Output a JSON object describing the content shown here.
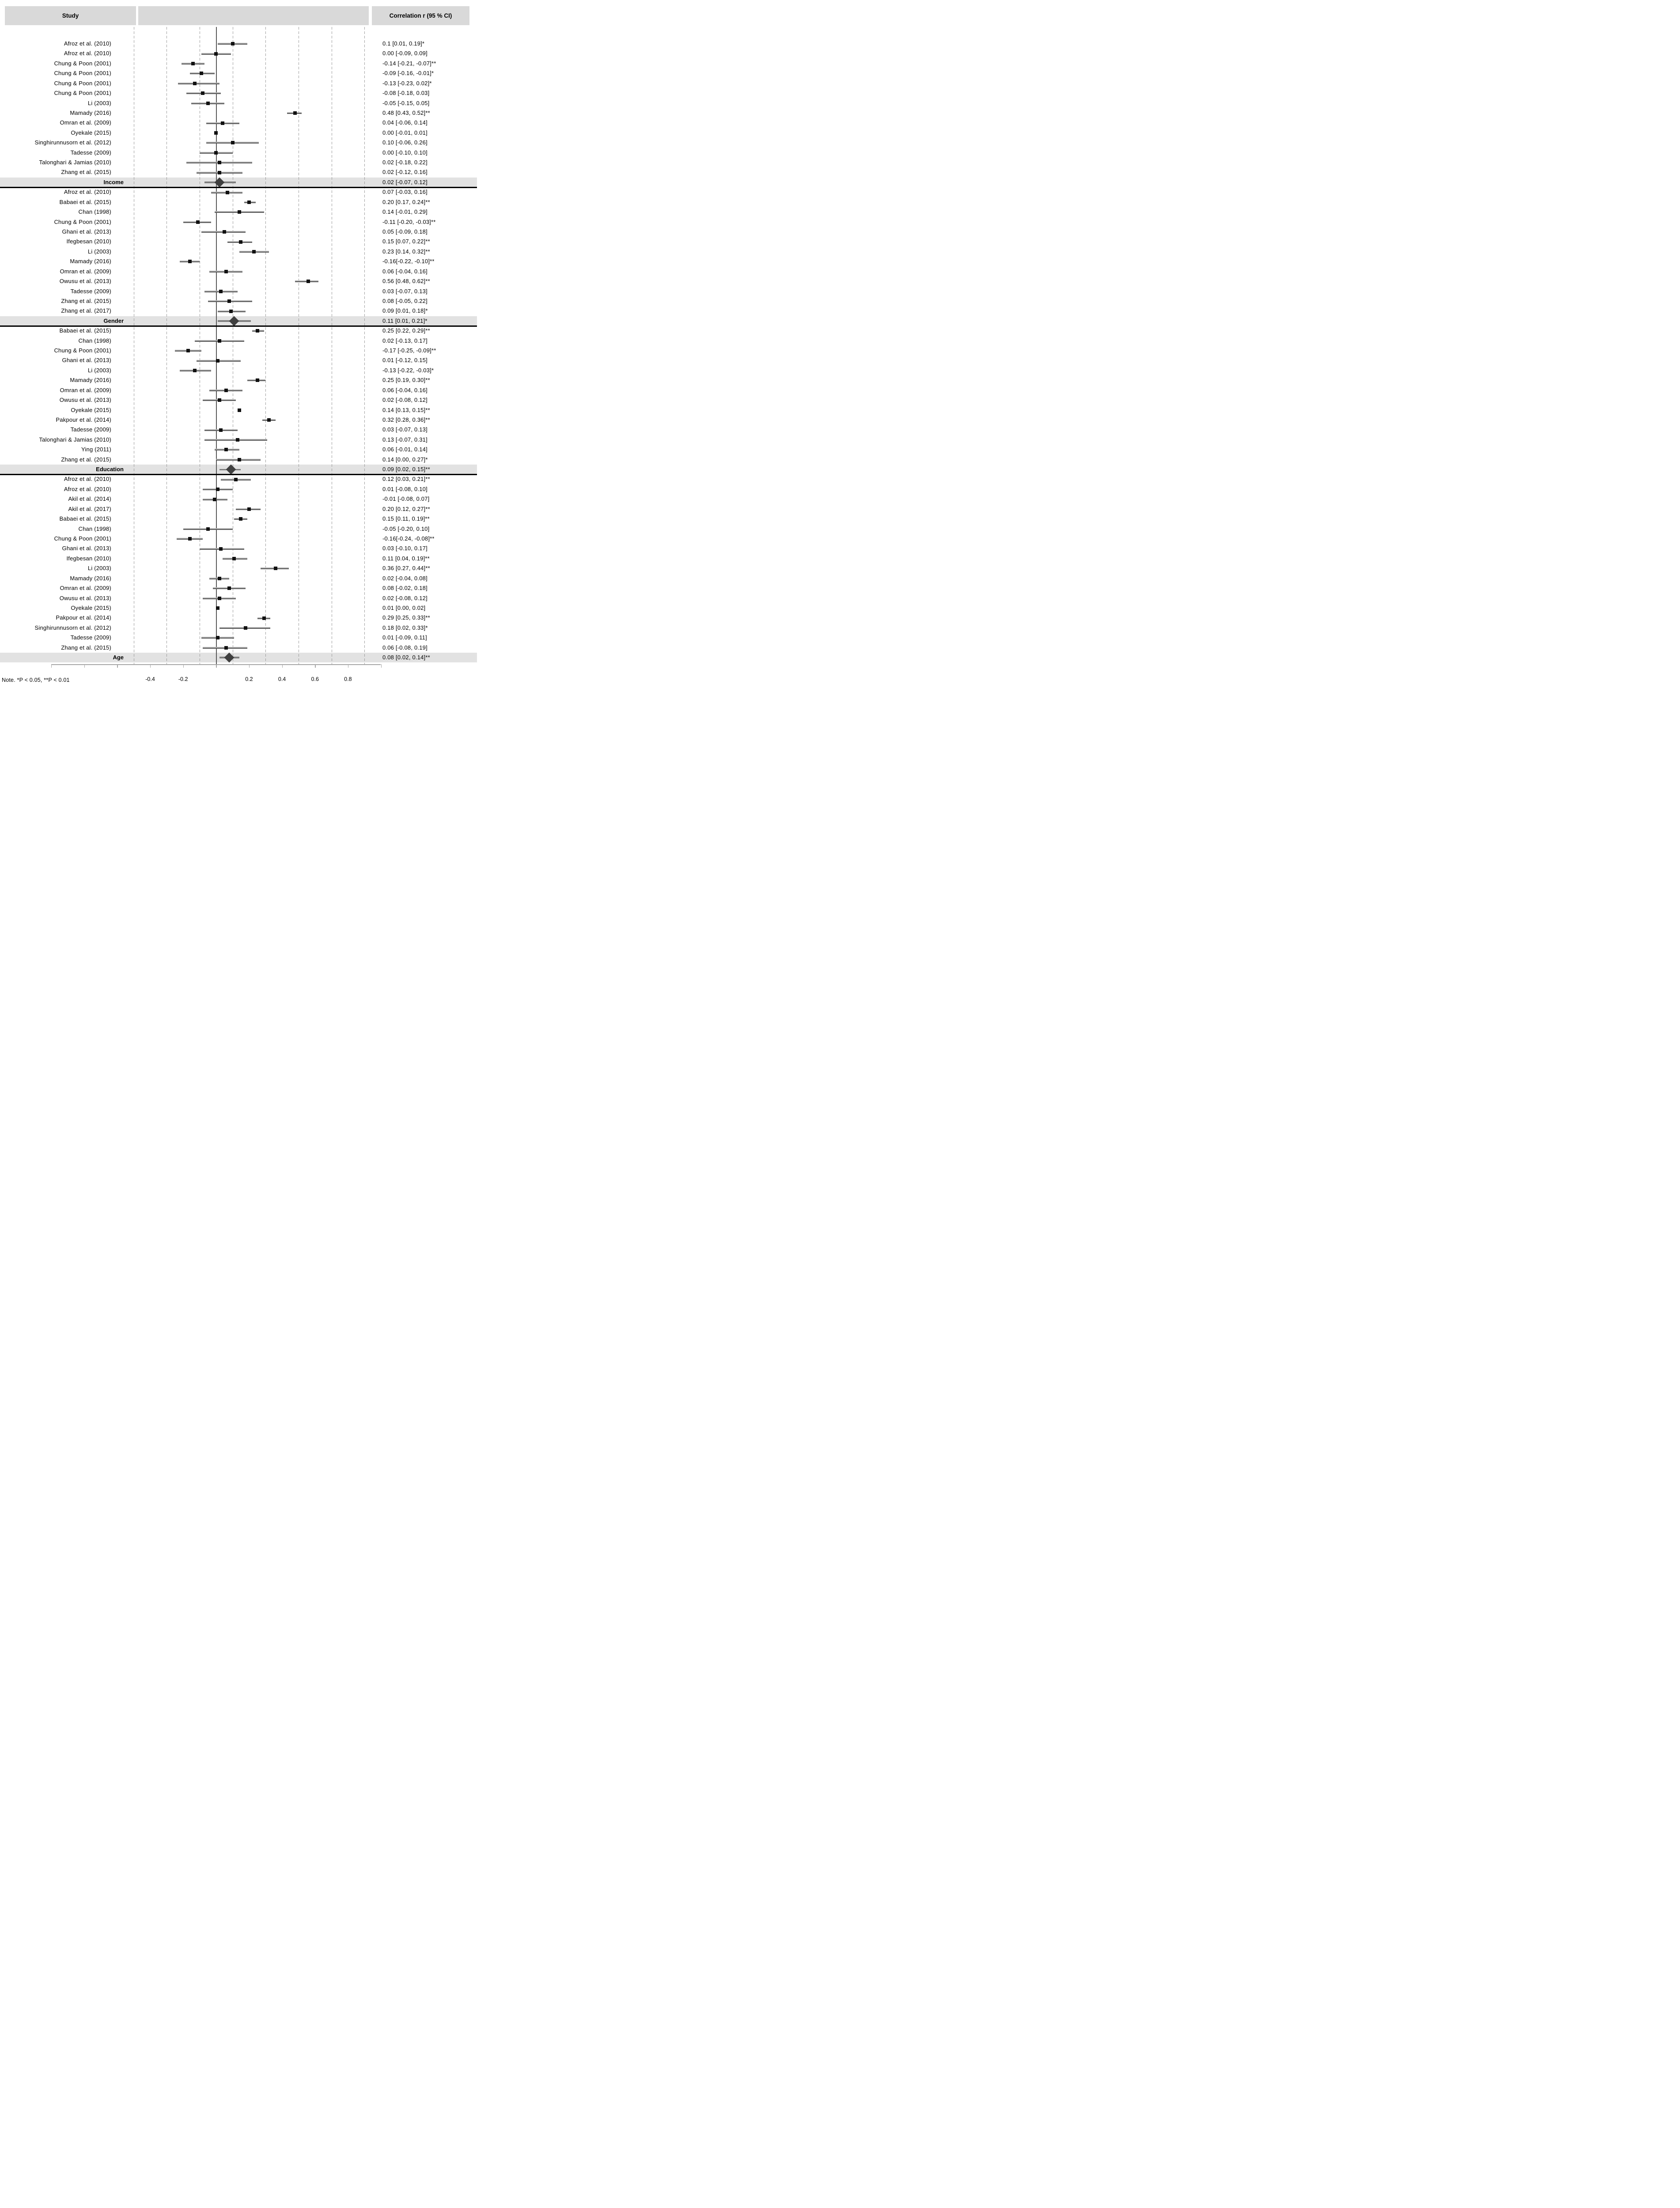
{
  "header": {
    "study_label": "Study",
    "correlation_label": "Correlation r (95 % CI)"
  },
  "note": "Note. *P < 0.05, **P < 0.01",
  "colors": {
    "header_bg": "#D9D9D9",
    "summary_band_bg": "#E2E2E2",
    "gridline": "#9B9B9B",
    "zero_line": "#595959",
    "axis": "#A6A6A6",
    "ci_line": "#7F7F7F",
    "marker": "#111111",
    "diamond": "#3F3F3F",
    "separator": "#000000",
    "text": "#000000"
  },
  "chart_data": {
    "type": "forest",
    "title": "",
    "xlabel": "",
    "xlim": [
      -1.0,
      1.0
    ],
    "grid": "dashed-vertical",
    "axis": {
      "tick_values": [
        -1.0,
        -0.8,
        -0.6,
        -0.4,
        -0.2,
        0,
        0.2,
        0.4,
        0.6,
        0.8,
        1.0
      ],
      "tick_labels": [
        {
          "value": -0.4,
          "label": "-0.4"
        },
        {
          "value": -0.2,
          "label": "-0.2"
        },
        {
          "value": 0.2,
          "label": "0.2"
        },
        {
          "value": 0.4,
          "label": "0.4"
        },
        {
          "value": 0.6,
          "label": "0.6"
        },
        {
          "value": 0.8,
          "label": "0.8"
        }
      ],
      "gridline_values": [
        -0.5,
        -0.3,
        -0.1,
        0.1,
        0.3,
        0.5,
        0.7,
        0.9
      ],
      "zero_value": 0
    },
    "sections": [
      {
        "name": "Income",
        "separator_below": true,
        "summary": {
          "r": 0.02,
          "lo": -0.07,
          "hi": 0.12,
          "label": "0.02 [-0.07, 0.12]"
        },
        "studies": [
          {
            "study": "Afroz et al. (2010)",
            "r": 0.1,
            "lo": 0.01,
            "hi": 0.19,
            "label": "0.1 [0.01, 0.19]*"
          },
          {
            "study": "Afroz et al. (2010)",
            "r": 0.0,
            "lo": -0.09,
            "hi": 0.09,
            "label": "0.00 [-0.09, 0.09]"
          },
          {
            "study": "Chung & Poon (2001)",
            "r": -0.14,
            "lo": -0.21,
            "hi": -0.07,
            "label": "-0.14 [-0.21, -0.07]**"
          },
          {
            "study": "Chung & Poon (2001)",
            "r": -0.09,
            "lo": -0.16,
            "hi": -0.01,
            "label": "-0.09 [-0.16, -0.01]*"
          },
          {
            "study": "Chung & Poon (2001)",
            "r": -0.13,
            "lo": -0.23,
            "hi": 0.02,
            "label": "-0.13 [-0.23, 0.02]*"
          },
          {
            "study": "Chung & Poon (2001)",
            "r": -0.08,
            "lo": -0.18,
            "hi": 0.03,
            "label": "-0.08 [-0.18, 0.03]"
          },
          {
            "study": "Li (2003)",
            "r": -0.05,
            "lo": -0.15,
            "hi": 0.05,
            "label": "-0.05 [-0.15, 0.05]"
          },
          {
            "study": "Mamady (2016)",
            "r": 0.48,
            "lo": 0.43,
            "hi": 0.52,
            "label": "0.48 [0.43, 0.52]**"
          },
          {
            "study": "Omran et al. (2009)",
            "r": 0.04,
            "lo": -0.06,
            "hi": 0.14,
            "label": "0.04 [-0.06, 0.14]"
          },
          {
            "study": "Oyekale (2015)",
            "r": 0.0,
            "lo": -0.01,
            "hi": 0.01,
            "label": "0.00 [-0.01, 0.01]"
          },
          {
            "study": "Singhirunnusorn et al. (2012)",
            "r": 0.1,
            "lo": -0.06,
            "hi": 0.26,
            "label": "0.10 [-0.06, 0.26]"
          },
          {
            "study": "Tadesse (2009)",
            "r": 0.0,
            "lo": -0.1,
            "hi": 0.1,
            "label": "0.00 [-0.10, 0.10]"
          },
          {
            "study": "Talonghari & Jamias (2010)",
            "r": 0.02,
            "lo": -0.18,
            "hi": 0.22,
            "label": "0.02 [-0.18, 0.22]"
          },
          {
            "study": "Zhang et al. (2015)",
            "r": 0.02,
            "lo": -0.12,
            "hi": 0.16,
            "label": "0.02 [-0.12, 0.16]"
          }
        ]
      },
      {
        "name": "Gender",
        "separator_below": true,
        "summary": {
          "r": 0.11,
          "lo": 0.01,
          "hi": 0.21,
          "label": "0.11 [0.01, 0.21]*"
        },
        "studies": [
          {
            "study": "Afroz et al. (2010)",
            "r": 0.07,
            "lo": -0.03,
            "hi": 0.16,
            "label": "0.07 [-0.03, 0.16]"
          },
          {
            "study": "Babaei et al. (2015)",
            "r": 0.2,
            "lo": 0.17,
            "hi": 0.24,
            "label": "0.20 [0.17, 0.24]**"
          },
          {
            "study": "Chan (1998)",
            "r": 0.14,
            "lo": -0.01,
            "hi": 0.29,
            "label": "0.14 [-0.01, 0.29]"
          },
          {
            "study": "Chung & Poon (2001)",
            "r": -0.11,
            "lo": -0.2,
            "hi": -0.03,
            "label": "-0.11 [-0.20, -0.03]**"
          },
          {
            "study": "Ghani et al. (2013)",
            "r": 0.05,
            "lo": -0.09,
            "hi": 0.18,
            "label": "0.05 [-0.09, 0.18]"
          },
          {
            "study": "Ifegbesan (2010)",
            "r": 0.15,
            "lo": 0.07,
            "hi": 0.22,
            "label": "0.15 [0.07, 0.22]**"
          },
          {
            "study": "Li (2003)",
            "r": 0.23,
            "lo": 0.14,
            "hi": 0.32,
            "label": "0.23 [0.14, 0.32]**"
          },
          {
            "study": "Mamady (2016)",
            "r": -0.16,
            "lo": -0.22,
            "hi": -0.1,
            "label": "-0.16[-0.22, -0.10]**"
          },
          {
            "study": "Omran et al. (2009)",
            "r": 0.06,
            "lo": -0.04,
            "hi": 0.16,
            "label": "0.06 [-0.04, 0.16]"
          },
          {
            "study": "Owusu et al. (2013)",
            "r": 0.56,
            "lo": 0.48,
            "hi": 0.62,
            "label": "0.56 [0.48, 0.62]**"
          },
          {
            "study": "Tadesse (2009)",
            "r": 0.03,
            "lo": -0.07,
            "hi": 0.13,
            "label": "0.03 [-0.07, 0.13]"
          },
          {
            "study": "Zhang et al. (2015)",
            "r": 0.08,
            "lo": -0.05,
            "hi": 0.22,
            "label": "0.08 [-0.05, 0.22]"
          },
          {
            "study": "Zhang et al. (2017)",
            "r": 0.09,
            "lo": 0.01,
            "hi": 0.18,
            "label": "0.09 [0.01, 0.18]*"
          }
        ]
      },
      {
        "name": "Education",
        "separator_below": true,
        "summary": {
          "r": 0.09,
          "lo": 0.02,
          "hi": 0.15,
          "label": "0.09 [0.02, 0.15]**"
        },
        "studies": [
          {
            "study": "Babaei et al. (2015)",
            "r": 0.25,
            "lo": 0.22,
            "hi": 0.29,
            "label": "0.25 [0.22, 0.29]**"
          },
          {
            "study": "Chan (1998)",
            "r": 0.02,
            "lo": -0.13,
            "hi": 0.17,
            "label": "0.02 [-0.13, 0.17]"
          },
          {
            "study": "Chung & Poon (2001)",
            "r": -0.17,
            "lo": -0.25,
            "hi": -0.09,
            "label": "-0.17 [-0.25, -0.09]**"
          },
          {
            "study": "Ghani et al. (2013)",
            "r": 0.01,
            "lo": -0.12,
            "hi": 0.15,
            "label": "0.01 [-0.12, 0.15]"
          },
          {
            "study": "Li (2003)",
            "r": -0.13,
            "lo": -0.22,
            "hi": -0.03,
            "label": "-0.13 [-0.22, -0.03]*"
          },
          {
            "study": "Mamady (2016)",
            "r": 0.25,
            "lo": 0.19,
            "hi": 0.3,
            "label": "0.25 [0.19, 0.30]**"
          },
          {
            "study": "Omran et al. (2009)",
            "r": 0.06,
            "lo": -0.04,
            "hi": 0.16,
            "label": "0.06 [-0.04, 0.16]"
          },
          {
            "study": "Owusu et al. (2013)",
            "r": 0.02,
            "lo": -0.08,
            "hi": 0.12,
            "label": "0.02 [-0.08, 0.12]"
          },
          {
            "study": "Oyekale (2015)",
            "r": 0.14,
            "lo": 0.13,
            "hi": 0.15,
            "label": "0.14 [0.13, 0.15]**"
          },
          {
            "study": "Pakpour et al. (2014)",
            "r": 0.32,
            "lo": 0.28,
            "hi": 0.36,
            "label": "0.32 [0.28, 0.36]**"
          },
          {
            "study": "Tadesse (2009)",
            "r": 0.03,
            "lo": -0.07,
            "hi": 0.13,
            "label": "0.03 [-0.07, 0.13]"
          },
          {
            "study": "Talonghari & Jamias (2010)",
            "r": 0.13,
            "lo": -0.07,
            "hi": 0.31,
            "label": "0.13 [-0.07, 0.31]"
          },
          {
            "study": "Ying (2011)",
            "r": 0.06,
            "lo": -0.01,
            "hi": 0.14,
            "label": "0.06 [-0.01, 0.14]"
          },
          {
            "study": "Zhang et al. (2015)",
            "r": 0.14,
            "lo": 0.0,
            "hi": 0.27,
            "label": "0.14 [0.00, 0.27]*"
          }
        ]
      },
      {
        "name": "Age",
        "separator_below": false,
        "summary": {
          "r": 0.08,
          "lo": 0.02,
          "hi": 0.14,
          "label": "0.08 [0.02, 0.14]**"
        },
        "studies": [
          {
            "study": "Afroz et al. (2010)",
            "r": 0.12,
            "lo": 0.03,
            "hi": 0.21,
            "label": "0.12 [0.03, 0.21]**"
          },
          {
            "study": "Afroz et al. (2010)",
            "r": 0.01,
            "lo": -0.08,
            "hi": 0.1,
            "label": "0.01 [-0.08, 0.10]"
          },
          {
            "study": "Akil et al. (2014)",
            "r": -0.01,
            "lo": -0.08,
            "hi": 0.07,
            "label": "-0.01 [-0.08, 0.07]"
          },
          {
            "study": "Akil et al. (2017)",
            "r": 0.2,
            "lo": 0.12,
            "hi": 0.27,
            "label": "0.20 [0.12, 0.27]**"
          },
          {
            "study": "Babaei et al. (2015)",
            "r": 0.15,
            "lo": 0.11,
            "hi": 0.19,
            "label": "0.15 [0.11, 0.19]**"
          },
          {
            "study": "Chan (1998)",
            "r": -0.05,
            "lo": -0.2,
            "hi": 0.1,
            "label": "-0.05 [-0.20, 0.10]"
          },
          {
            "study": "Chung & Poon (2001)",
            "r": -0.16,
            "lo": -0.24,
            "hi": -0.08,
            "label": "-0.16[-0.24, -0.08]**"
          },
          {
            "study": "Ghani et al. (2013)",
            "r": 0.03,
            "lo": -0.1,
            "hi": 0.17,
            "label": "0.03 [-0.10, 0.17]"
          },
          {
            "study": "Ifegbesan (2010)",
            "r": 0.11,
            "lo": 0.04,
            "hi": 0.19,
            "label": "0.11 [0.04, 0.19]**"
          },
          {
            "study": "Li (2003)",
            "r": 0.36,
            "lo": 0.27,
            "hi": 0.44,
            "label": "0.36 [0.27, 0.44]**"
          },
          {
            "study": "Mamady (2016)",
            "r": 0.02,
            "lo": -0.04,
            "hi": 0.08,
            "label": "0.02 [-0.04, 0.08]"
          },
          {
            "study": "Omran et al. (2009)",
            "r": 0.08,
            "lo": -0.02,
            "hi": 0.18,
            "label": "0.08 [-0.02, 0.18]"
          },
          {
            "study": "Owusu et al. (2013)",
            "r": 0.02,
            "lo": -0.08,
            "hi": 0.12,
            "label": "0.02 [-0.08, 0.12]"
          },
          {
            "study": "Oyekale (2015)",
            "r": 0.01,
            "lo": 0.0,
            "hi": 0.02,
            "label": "0.01 [0.00, 0.02]"
          },
          {
            "study": "Pakpour et al. (2014)",
            "r": 0.29,
            "lo": 0.25,
            "hi": 0.33,
            "label": "0.29 [0.25, 0.33]**"
          },
          {
            "study": "Singhirunnusorn et al. (2012)",
            "r": 0.18,
            "lo": 0.02,
            "hi": 0.33,
            "label": "0.18 [0.02, 0.33]*"
          },
          {
            "study": "Tadesse (2009)",
            "r": 0.01,
            "lo": -0.09,
            "hi": 0.11,
            "label": "0.01 [-0.09, 0.11]"
          },
          {
            "study": "Zhang et al. (2015)",
            "r": 0.06,
            "lo": -0.08,
            "hi": 0.19,
            "label": "0.06 [-0.08, 0.19]"
          }
        ]
      }
    ]
  }
}
